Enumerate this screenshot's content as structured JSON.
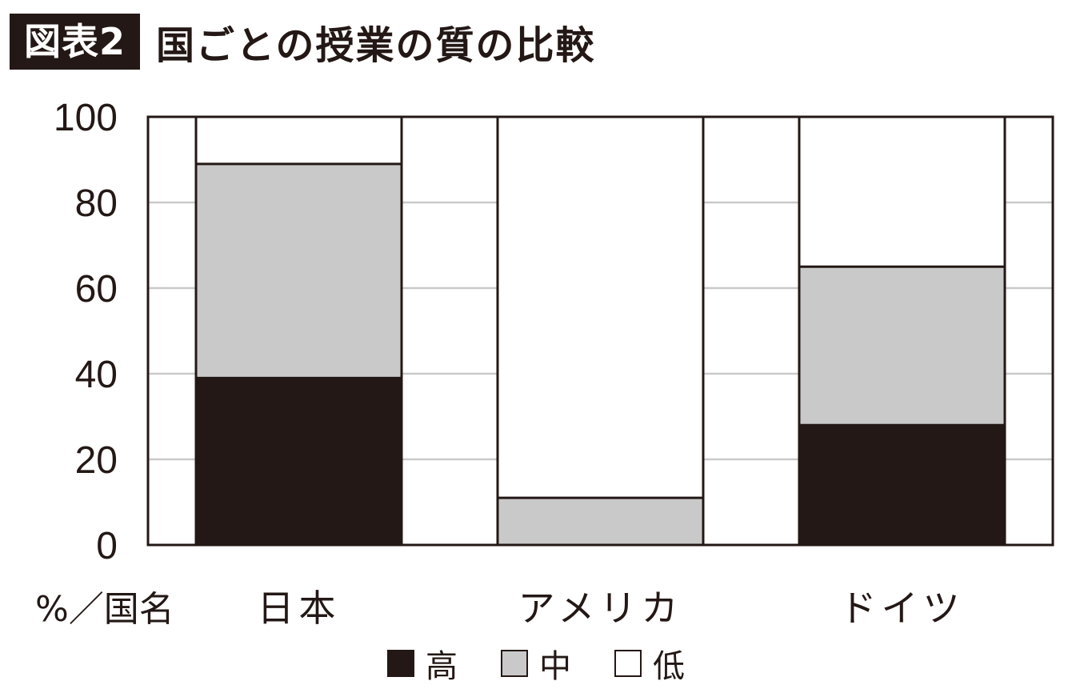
{
  "figure": {
    "tag": "図表2",
    "title": "国ごとの授業の質の比較"
  },
  "colors": {
    "high": "#231815",
    "mid": "#c9c9ca",
    "low": "#ffffff",
    "grid": "#c9c9ca",
    "axis": "#231815"
  },
  "chart_data": {
    "type": "bar",
    "stacked": true,
    "categories": [
      "日本",
      "アメリカ",
      "ドイツ"
    ],
    "series": [
      {
        "name": "高",
        "values": [
          39,
          0,
          28
        ]
      },
      {
        "name": "中",
        "values": [
          50,
          11,
          37
        ]
      },
      {
        "name": "低",
        "values": [
          11,
          89,
          35
        ]
      }
    ],
    "ylim": [
      0,
      100
    ],
    "yticks": [
      0,
      20,
      40,
      60,
      80,
      100
    ],
    "corner_label": "%／国名",
    "grid": true,
    "legend_position": "bottom"
  }
}
